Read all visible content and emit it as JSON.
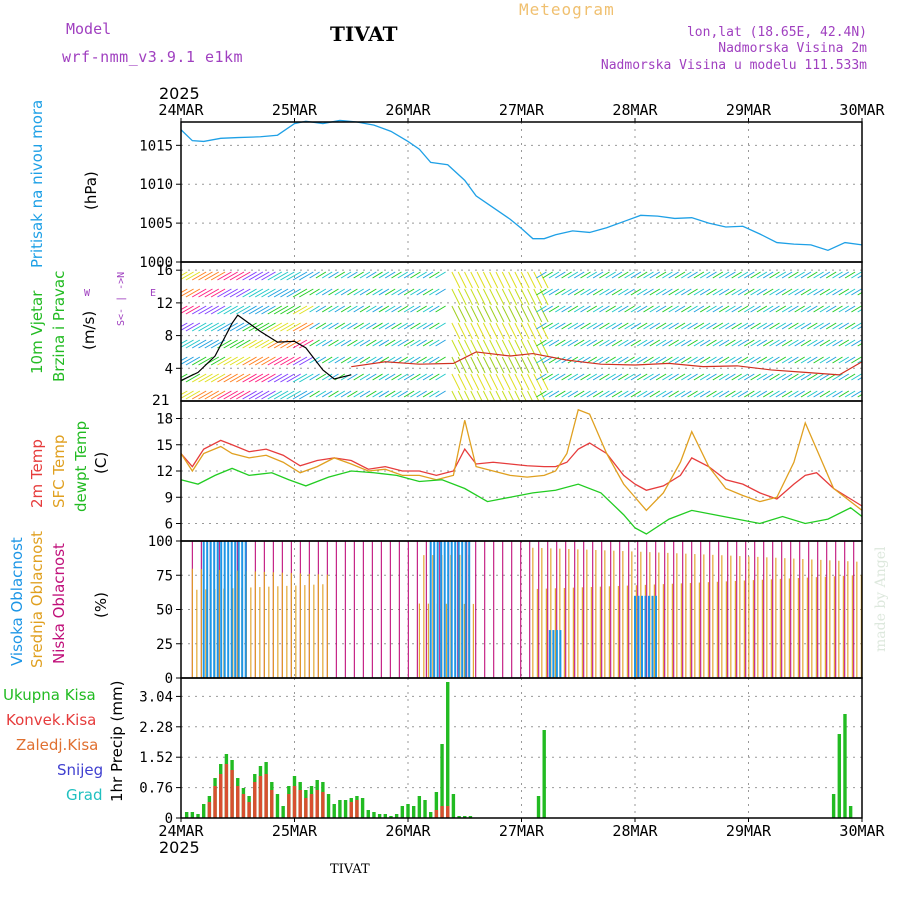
{
  "header": {
    "model_label": "Model",
    "model_name": "wrf-nmm_v3.9.1 e1km",
    "station": "TIVAT",
    "title": "Meteogram",
    "coords": "lon,lat (18.65E, 42.4N)",
    "altitude": "Nadmorska Visina 2m",
    "model_altitude": "Nadmorska Visina u modelu 111.533m",
    "credit": "made by Angel",
    "footer_station": "TIVAT"
  },
  "time_axis": {
    "year": "2025",
    "labels": [
      "24MAR",
      "25MAR",
      "26MAR",
      "27MAR",
      "28MAR",
      "29MAR",
      "30MAR"
    ]
  },
  "panels": {
    "pressure": {
      "title": "Pritisak na nivou mora",
      "unit": "(hPa)",
      "ticks": [
        "1000",
        "1005",
        "1010",
        "1015"
      ]
    },
    "wind": {
      "title1": "10m Vjetar",
      "title2": "Brzina i Pravac",
      "unit": "(m/s)",
      "ticks": [
        "4",
        "8",
        "12",
        "16"
      ],
      "compass_n": "N",
      "compass_s": "S",
      "compass_w": "W",
      "compass_e": "E",
      "compass_extra": "21"
    },
    "temp": {
      "t2m": "2m Temp",
      "sfc": "SFC Temp",
      "dew": "dewpt Temp",
      "unit": "(C)",
      "ticks": [
        "6",
        "9",
        "12",
        "15",
        "18"
      ]
    },
    "cloud": {
      "high": "Visoka Oblacnost",
      "mid": "Srednja Oblacnost",
      "low": "Niska Oblacnost",
      "unit": "(%)",
      "ticks": [
        "0",
        "25",
        "50",
        "75",
        "100"
      ]
    },
    "precip": {
      "total": "Ukupna Kisa",
      "conv": "Konvek.Kisa",
      "frozen": "Zaledj.Kisa",
      "snow": "Snijeg",
      "hail": "Grad",
      "unit": "1hr Precip (mm)",
      "ticks": [
        "0",
        "0.76",
        "1.52",
        "2.28",
        "3.04"
      ]
    }
  },
  "colors": {
    "pressure": "#1ea0e6",
    "t2m": "#e63c3c",
    "sfc": "#e0a020",
    "dew": "#22cc22",
    "high": "#1e96e6",
    "mid": "#e0a020",
    "low": "#c0107a",
    "total": "#22bb22",
    "conv": "#d85030",
    "model_label": "#a040c0",
    "header_right": "#a040c0",
    "meteogram": "#f0c070",
    "snow": "#4040d0",
    "hail": "#20c0c0"
  },
  "chart_data": [
    {
      "type": "line",
      "title": "Pritisak na nivou mora",
      "ylabel": "(hPa)",
      "ylim": [
        1000,
        1018
      ],
      "x_unit": "days since 24MAR 00UTC",
      "xlim": [
        0,
        6
      ],
      "series": [
        {
          "name": "Pritisak na nivou mora",
          "x": [
            0,
            0.1,
            0.2,
            0.35,
            0.5,
            0.7,
            0.85,
            1.0,
            1.1,
            1.25,
            1.4,
            1.55,
            1.7,
            1.85,
            2.0,
            2.1,
            2.2,
            2.35,
            2.5,
            2.6,
            2.75,
            2.9,
            3.0,
            3.1,
            3.2,
            3.3,
            3.45,
            3.6,
            3.75,
            3.9,
            4.05,
            4.2,
            4.35,
            4.5,
            4.65,
            4.8,
            4.95,
            5.1,
            5.25,
            5.4,
            5.55,
            5.7,
            5.85,
            6.0
          ],
          "values": [
            1017,
            1015.6,
            1015.5,
            1015.9,
            1016.0,
            1016.1,
            1016.3,
            1017.8,
            1018.1,
            1017.8,
            1018.2,
            1018.0,
            1017.6,
            1016.8,
            1015.5,
            1014.5,
            1012.8,
            1012.5,
            1010.5,
            1008.5,
            1007.0,
            1005.5,
            1004.3,
            1003.0,
            1003.0,
            1003.5,
            1004.0,
            1003.8,
            1004.4,
            1005.2,
            1006.0,
            1005.9,
            1005.6,
            1005.7,
            1005.0,
            1004.5,
            1004.6,
            1003.6,
            1002.5,
            1002.3,
            1002.2,
            1001.5,
            1002.5,
            1002.2
          ]
        }
      ]
    },
    {
      "type": "line",
      "title": "10m Vjetar Brzina i Pravac",
      "ylabel": "(m/s)",
      "ylim": [
        0,
        17
      ],
      "x_unit": "days since 24MAR 00UTC",
      "xlim": [
        0,
        6
      ],
      "series": [
        {
          "name": "Brzina",
          "x": [
            0,
            0.15,
            0.3,
            0.45,
            0.5,
            0.7,
            0.85,
            1.0,
            1.1,
            1.25,
            1.35,
            1.5
          ],
          "values": [
            2.5,
            3.5,
            5.5,
            9.5,
            10.5,
            8.5,
            7.2,
            7.3,
            6.5,
            3.8,
            2.7,
            3.2
          ]
        },
        {
          "name": "Brzina",
          "x": [
            1.5,
            1.8,
            2.1,
            2.4,
            2.6,
            2.9,
            3.1,
            3.4,
            3.7,
            4.0,
            4.3,
            4.6,
            4.9,
            5.2,
            5.5,
            5.8,
            6.0
          ],
          "values": [
            4.2,
            4.8,
            4.5,
            4.6,
            6.0,
            5.5,
            5.8,
            5.0,
            4.5,
            4.4,
            4.6,
            4.2,
            4.3,
            3.8,
            3.5,
            3.2,
            4.8
          ]
        }
      ]
    },
    {
      "type": "line",
      "title": "Temp",
      "ylabel": "(C)",
      "ylim": [
        4,
        20
      ],
      "x_unit": "days since 24MAR 00UTC",
      "xlim": [
        0,
        6
      ],
      "series": [
        {
          "name": "2m Temp",
          "x": [
            0,
            0.1,
            0.2,
            0.35,
            0.45,
            0.6,
            0.75,
            0.9,
            1.05,
            1.2,
            1.35,
            1.5,
            1.65,
            1.8,
            1.95,
            2.1,
            2.25,
            2.4,
            2.5,
            2.6,
            2.75,
            2.9,
            3.05,
            3.2,
            3.3,
            3.4,
            3.5,
            3.6,
            3.75,
            3.9,
            4.0,
            4.1,
            4.25,
            4.4,
            4.5,
            4.65,
            4.8,
            4.95,
            5.1,
            5.25,
            5.4,
            5.5,
            5.6,
            5.75,
            5.9,
            6.0
          ],
          "values": [
            14,
            12.5,
            14.5,
            15.5,
            15,
            14.2,
            14.5,
            13.8,
            12.6,
            13.2,
            13.5,
            13.2,
            12.2,
            12.5,
            12.0,
            12.0,
            11.5,
            12.0,
            14.5,
            12.8,
            13.0,
            12.8,
            12.6,
            12.5,
            12.5,
            13.0,
            14.5,
            15.2,
            14.0,
            11.5,
            10.5,
            9.8,
            10.3,
            11.5,
            13.5,
            12.5,
            11.0,
            10.5,
            9.5,
            8.8,
            10.5,
            11.5,
            11.8,
            10.0,
            8.8,
            8.0
          ]
        },
        {
          "name": "SFC Temp",
          "x": [
            0,
            0.1,
            0.2,
            0.35,
            0.45,
            0.6,
            0.75,
            0.9,
            1.05,
            1.2,
            1.35,
            1.5,
            1.65,
            1.8,
            1.95,
            2.1,
            2.25,
            2.4,
            2.5,
            2.6,
            2.75,
            2.9,
            3.05,
            3.2,
            3.3,
            3.4,
            3.5,
            3.6,
            3.75,
            3.9,
            4.0,
            4.1,
            4.25,
            4.4,
            4.5,
            4.65,
            4.8,
            4.95,
            5.1,
            5.25,
            5.4,
            5.5,
            5.6,
            5.75,
            5.9,
            6.0
          ],
          "values": [
            14,
            12,
            14,
            14.8,
            14,
            13.5,
            13.8,
            13,
            11.8,
            12.5,
            13.5,
            12.8,
            12.0,
            12.2,
            11.5,
            11.5,
            11.0,
            11.5,
            17.8,
            12.5,
            12.0,
            11.5,
            11.3,
            11.5,
            12.0,
            14.0,
            19.0,
            18.5,
            14.0,
            10.5,
            9.0,
            7.5,
            9.5,
            13.0,
            16.5,
            12.5,
            10.0,
            9.2,
            8.5,
            9.0,
            13.0,
            17.5,
            14.5,
            10.0,
            8.5,
            7.5
          ]
        },
        {
          "name": "dewpt Temp",
          "x": [
            0,
            0.15,
            0.3,
            0.45,
            0.6,
            0.8,
            0.95,
            1.1,
            1.3,
            1.5,
            1.7,
            1.9,
            2.1,
            2.3,
            2.5,
            2.7,
            2.9,
            3.1,
            3.3,
            3.5,
            3.7,
            3.9,
            4.0,
            4.1,
            4.3,
            4.5,
            4.7,
            4.9,
            5.1,
            5.3,
            5.5,
            5.7,
            5.9,
            6.0
          ],
          "values": [
            11,
            10.5,
            11.5,
            12.3,
            11.5,
            11.8,
            11.0,
            10.3,
            11.3,
            12.0,
            11.8,
            11.5,
            10.8,
            11.0,
            10.0,
            8.5,
            9.0,
            9.5,
            9.8,
            10.5,
            9.5,
            7.0,
            5.5,
            4.8,
            6.5,
            7.5,
            7.0,
            6.5,
            6.0,
            6.8,
            6.0,
            6.5,
            7.8,
            6.8
          ]
        }
      ]
    },
    {
      "type": "bar",
      "title": "Oblacnost",
      "ylabel": "(%)",
      "ylim": [
        0,
        100
      ],
      "x_unit": "days since 24MAR 00UTC",
      "xlim": [
        0,
        6
      ],
      "series": [
        {
          "name": "Visoka Oblacnost",
          "ranges": [
            [
              0.2,
              0.6
            ],
            [
              2.2,
              2.55
            ],
            [
              3.25,
              3.35
            ],
            [
              4.0,
              4.2
            ]
          ],
          "values": [
            100,
            100,
            35,
            60
          ]
        },
        {
          "name": "Srednja Oblacnost",
          "ranges": [
            [
              0.1,
              1.3
            ],
            [
              2.1,
              2.6
            ],
            [
              3.1,
              6.0
            ]
          ],
          "values": [
            90,
            90,
            100
          ]
        },
        {
          "name": "Niska Oblacnost",
          "ranges": [
            [
              0.1,
              2.2
            ],
            [
              2.2,
              6.0
            ]
          ],
          "values": [
            100,
            100
          ]
        }
      ]
    },
    {
      "type": "bar",
      "title": "1hr Precip",
      "ylabel": "1hr Precip (mm)",
      "ylim": [
        0,
        3.5
      ],
      "x_unit": "days since 24MAR 00UTC",
      "xlim": [
        0,
        6
      ],
      "series": [
        {
          "name": "Ukupna Kisa",
          "x": [
            0.05,
            0.1,
            0.15,
            0.2,
            0.25,
            0.3,
            0.35,
            0.4,
            0.45,
            0.5,
            0.55,
            0.6,
            0.65,
            0.7,
            0.75,
            0.8,
            0.85,
            0.9,
            0.95,
            1.0,
            1.05,
            1.1,
            1.15,
            1.2,
            1.25,
            1.3,
            1.35,
            1.4,
            1.45,
            1.5,
            1.55,
            1.6,
            1.65,
            1.7,
            1.75,
            1.8,
            1.85,
            1.9,
            1.95,
            2.0,
            2.05,
            2.1,
            2.15,
            2.2,
            2.25,
            2.3,
            2.35,
            2.4,
            2.45,
            2.5,
            2.55,
            3.15,
            3.2,
            5.75,
            5.8,
            5.85,
            5.9
          ],
          "values": [
            0.15,
            0.15,
            0.1,
            0.35,
            0.55,
            1.0,
            1.35,
            1.6,
            1.45,
            1.0,
            0.75,
            0.55,
            1.1,
            1.3,
            1.4,
            0.9,
            0.6,
            0.3,
            0.8,
            1.05,
            0.9,
            0.7,
            0.8,
            0.95,
            0.9,
            0.6,
            0.35,
            0.45,
            0.45,
            0.5,
            0.55,
            0.5,
            0.2,
            0.15,
            0.1,
            0.1,
            0.05,
            0.1,
            0.3,
            0.35,
            0.3,
            0.55,
            0.45,
            0.15,
            0.65,
            1.85,
            3.4,
            0.6,
            0.05,
            0.05,
            0.05,
            0.55,
            2.2,
            0.6,
            2.1,
            2.6,
            0.3
          ]
        },
        {
          "name": "Konvek.Kisa",
          "x": [
            0.25,
            0.3,
            0.35,
            0.4,
            0.45,
            0.5,
            0.55,
            0.6,
            0.65,
            0.7,
            0.75,
            0.8,
            0.95,
            1.0,
            1.05,
            1.1,
            1.15,
            1.2,
            1.25,
            1.5,
            1.55,
            2.25,
            2.3,
            2.35
          ],
          "values": [
            0.4,
            0.8,
            1.1,
            1.35,
            1.2,
            0.8,
            0.6,
            0.4,
            0.9,
            1.05,
            1.1,
            0.7,
            0.6,
            0.8,
            0.7,
            0.5,
            0.6,
            0.7,
            0.65,
            0.4,
            0.45,
            0.2,
            0.3,
            0.3
          ]
        }
      ]
    }
  ]
}
